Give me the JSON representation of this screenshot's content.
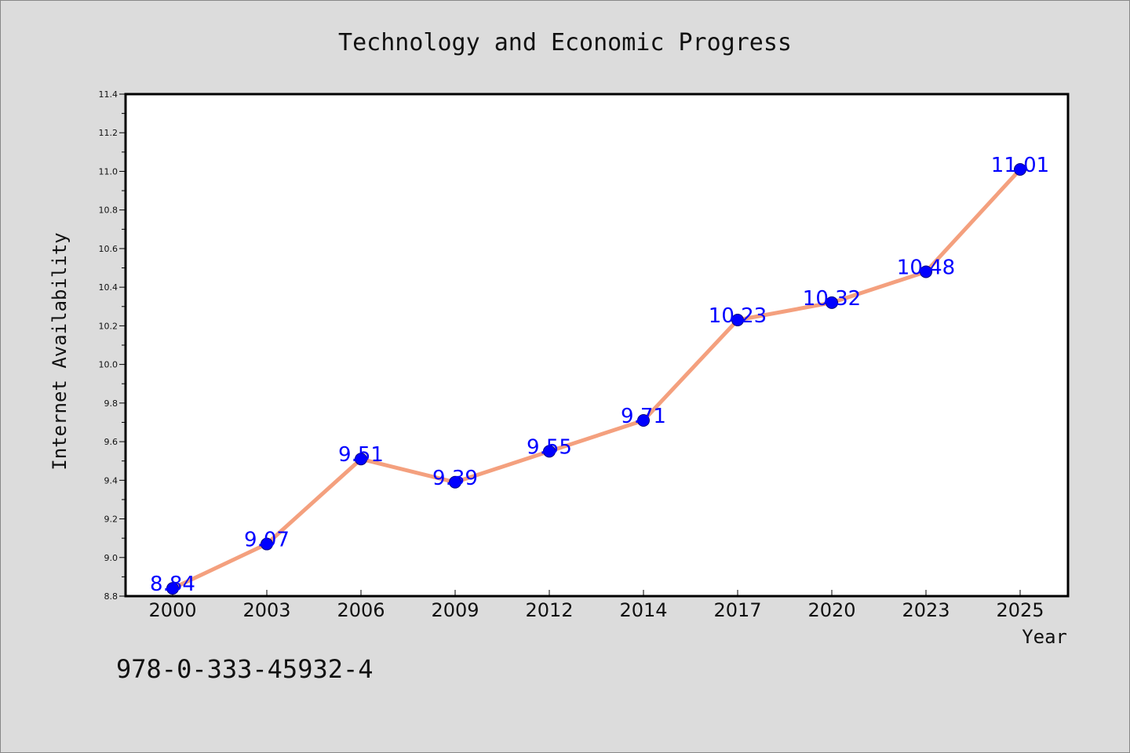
{
  "chart_data": {
    "type": "line",
    "title": "Technology and Economic Progress",
    "xlabel": "Year",
    "ylabel": "Internet Availability",
    "categories": [
      "2000",
      "2003",
      "2006",
      "2009",
      "2012",
      "2014",
      "2017",
      "2020",
      "2023",
      "2025"
    ],
    "series": [
      {
        "values": [
          8.84,
          9.07,
          9.51,
          9.39,
          9.55,
          9.71,
          10.23,
          10.32,
          10.48,
          11.01
        ]
      }
    ],
    "data_labels": [
      "8.84",
      "9.07",
      "9.51",
      "9.39",
      "9.55",
      "9.71",
      "10.23",
      "10.32",
      "10.48",
      "11.01"
    ],
    "ylim": [
      8.8,
      11.4
    ],
    "yticks": [
      "8.8",
      "9.0",
      "9.2",
      "9.4",
      "9.6",
      "9.8",
      "10.0",
      "10.2",
      "10.4",
      "10.6",
      "10.8",
      "11.0",
      "11.2",
      "11.4"
    ],
    "grid": false,
    "legend": "none",
    "colors": {
      "line": "#f4a07e",
      "marker": "#0000ff",
      "marker_edge": "#000080",
      "label": "#0000ff"
    }
  },
  "footer": {
    "isbn": "978-0-333-45932-4"
  }
}
